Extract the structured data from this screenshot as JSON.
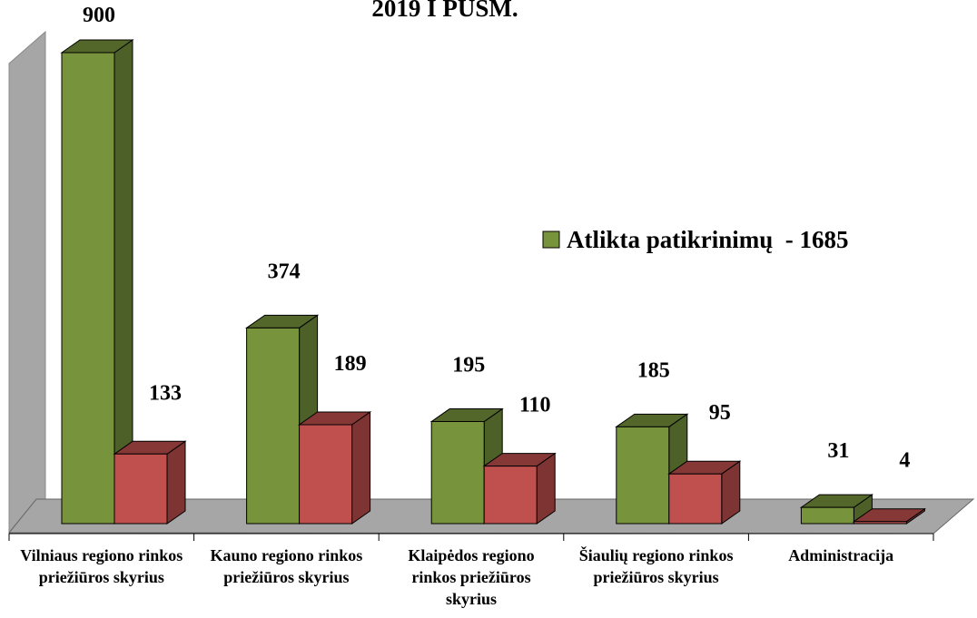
{
  "chart_data": {
    "type": "bar3d",
    "title": "2019 I PUSM.",
    "categories": [
      "Vilniaus regiono rinkos priežiūros skyrius",
      "Kauno regiono rinkos priežiūros skyrius",
      "Klaipėdos regiono rinkos priežiūros skyrius",
      "Šiaulių regiono rinkos priežiūros skyrius",
      "Administracija"
    ],
    "series": [
      {
        "name": "Atlikta patikrinimų  - 1685",
        "color": "#77933c",
        "values": [
          900,
          374,
          195,
          185,
          31
        ]
      },
      {
        "color": "#c0504d",
        "values": [
          133,
          189,
          110,
          95,
          4
        ]
      }
    ],
    "legend": "right"
  }
}
